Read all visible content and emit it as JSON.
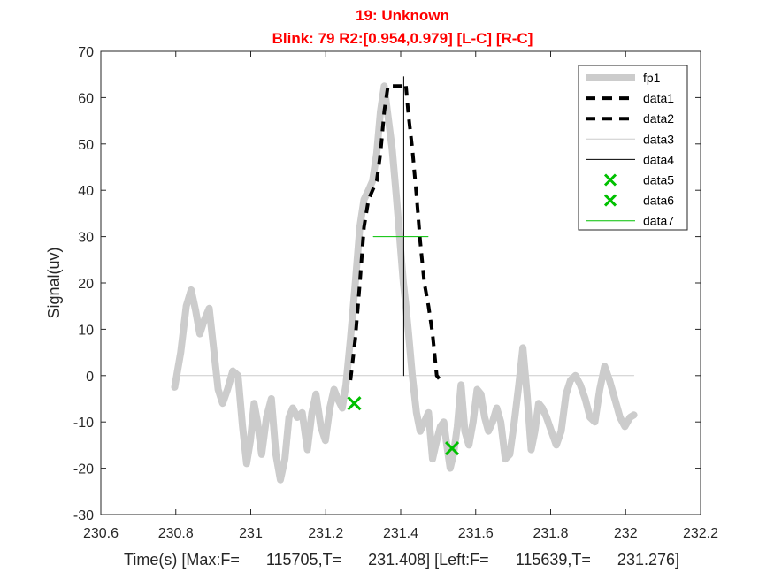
{
  "chart_data": {
    "type": "line",
    "title": "19: Unknown",
    "subtitle": "Blink: 79 R2:[0.954,0.979]  [L-C] [R-C]",
    "xlabel": "Time(s) [Max:F=      115705,T=      231.408] [Left:F=      115639,T=      231.276]",
    "ylabel": "Signal(uv)",
    "xlim": [
      230.6,
      232.2
    ],
    "ylim": [
      -30,
      70
    ],
    "xticks": [
      230.6,
      230.8,
      231,
      231.2,
      231.4,
      231.6,
      231.8,
      232,
      232.2
    ],
    "xtick_labels": [
      "230.6",
      "230.8",
      "231",
      "231.2",
      "231.4",
      "231.6",
      "231.8",
      "232",
      "232.2"
    ],
    "yticks": [
      -30,
      -20,
      -10,
      0,
      10,
      20,
      30,
      40,
      50,
      60,
      70
    ],
    "ytick_labels": [
      "-30",
      "-20",
      "-10",
      "0",
      "10",
      "20",
      "30",
      "40",
      "50",
      "60",
      "70"
    ],
    "grid": false,
    "legend_position": "top-right",
    "colors": {
      "title": "#ff0000",
      "fp1": "#cccccc",
      "data1": "#000000",
      "data2": "#000000",
      "data3": "#cccccc",
      "data4": "#000000",
      "data5": "#00c000",
      "data6": "#00c000",
      "data7": "#00c000"
    },
    "series": [
      {
        "name": "fp1",
        "style": "thick-line",
        "x": [
          230.797,
          230.813,
          230.828,
          230.841,
          230.853,
          230.864,
          230.876,
          230.889,
          230.902,
          230.913,
          230.925,
          230.938,
          230.952,
          230.966,
          230.978,
          230.989,
          230.999,
          231.009,
          231.018,
          231.029,
          231.042,
          231.055,
          231.067,
          231.079,
          231.091,
          231.102,
          231.112,
          231.124,
          231.137,
          231.151,
          231.163,
          231.174,
          231.187,
          231.199,
          231.211,
          231.222,
          231.232,
          231.244,
          231.254,
          231.266,
          231.279,
          231.291,
          231.302,
          231.314,
          231.325,
          231.336,
          231.346,
          231.356,
          231.366,
          231.377,
          231.388,
          231.398,
          231.407,
          231.414,
          231.421,
          231.431,
          231.442,
          231.452,
          231.463,
          231.474,
          231.485,
          231.496,
          231.506,
          231.515,
          231.523,
          231.532,
          231.541,
          231.551,
          231.561,
          231.571,
          231.582,
          231.593,
          231.604,
          231.614,
          231.624,
          231.634,
          231.645,
          231.656,
          231.667,
          231.679,
          231.691,
          231.703,
          231.715,
          231.726,
          231.737,
          231.748,
          231.758,
          231.768,
          231.778,
          231.789,
          231.802,
          231.815,
          231.828,
          231.841,
          231.853,
          231.866,
          231.879,
          231.892,
          231.905,
          231.918,
          231.931,
          231.944,
          231.957,
          231.971,
          231.985,
          231.998,
          232.012,
          232.022
        ],
        "y": [
          -2.5,
          5,
          15,
          18.5,
          14,
          9,
          12,
          14.5,
          5,
          -3,
          -6,
          -3,
          1,
          0,
          -11,
          -19,
          -14,
          -6,
          -10,
          -17,
          -9,
          -5,
          -17,
          -22.5,
          -18,
          -9,
          -7,
          -9,
          -8,
          -16,
          -8,
          -4,
          -11,
          -14,
          -7,
          -3,
          -5,
          -7,
          -2,
          8,
          20,
          32,
          38,
          40,
          42,
          48,
          57,
          62.5,
          56,
          49,
          39,
          29,
          20,
          15,
          9,
          0,
          -8,
          -12,
          -10,
          -8,
          -18,
          -14,
          -11,
          -10,
          -15,
          -20,
          -17,
          -11,
          -2,
          -12,
          -15,
          -10,
          -3,
          -4,
          -9,
          -12,
          -10,
          -7,
          -10,
          -18,
          -17,
          -10,
          -2,
          6,
          -4,
          -16,
          -12,
          -6,
          -7,
          -9,
          -12,
          -15,
          -12,
          -4,
          -1,
          0,
          -2,
          -5,
          -9,
          -10,
          -3,
          2,
          -1,
          -5,
          -9,
          -11,
          -9,
          -8.5
        ]
      },
      {
        "name": "data1",
        "style": "dashed",
        "x": [
          231.266,
          231.279,
          231.291,
          231.302,
          231.314,
          231.325,
          231.336,
          231.346,
          231.356,
          231.366,
          231.377,
          231.388,
          231.398,
          231.407,
          231.414
        ],
        "y": [
          -1,
          8,
          20,
          32,
          38,
          40,
          42,
          48,
          57,
          62.5,
          62.5,
          62.5,
          62.5,
          62.5,
          62.5
        ]
      },
      {
        "name": "data2",
        "style": "dashed",
        "x": [
          231.414,
          231.421,
          231.431,
          231.442,
          231.452,
          231.463,
          231.474,
          231.485,
          231.496,
          231.506,
          231.515
        ],
        "y": [
          62.5,
          56,
          49,
          39,
          29,
          20,
          15,
          9,
          0,
          -1,
          -1
        ]
      },
      {
        "name": "data3",
        "style": "thin-line",
        "x": [
          230.797,
          232.022
        ],
        "y": [
          0,
          0
        ]
      },
      {
        "name": "data4",
        "style": "thin-line",
        "x": [
          231.408,
          231.408
        ],
        "y": [
          0,
          64.5
        ]
      },
      {
        "name": "data5",
        "style": "marker-x",
        "x": [
          231.276
        ],
        "y": [
          -6
        ]
      },
      {
        "name": "data6",
        "style": "marker-x",
        "x": [
          231.537
        ],
        "y": [
          -15.7
        ]
      },
      {
        "name": "data7",
        "style": "thin-line",
        "x": [
          231.327,
          231.473
        ],
        "y": [
          30,
          30
        ]
      }
    ]
  }
}
